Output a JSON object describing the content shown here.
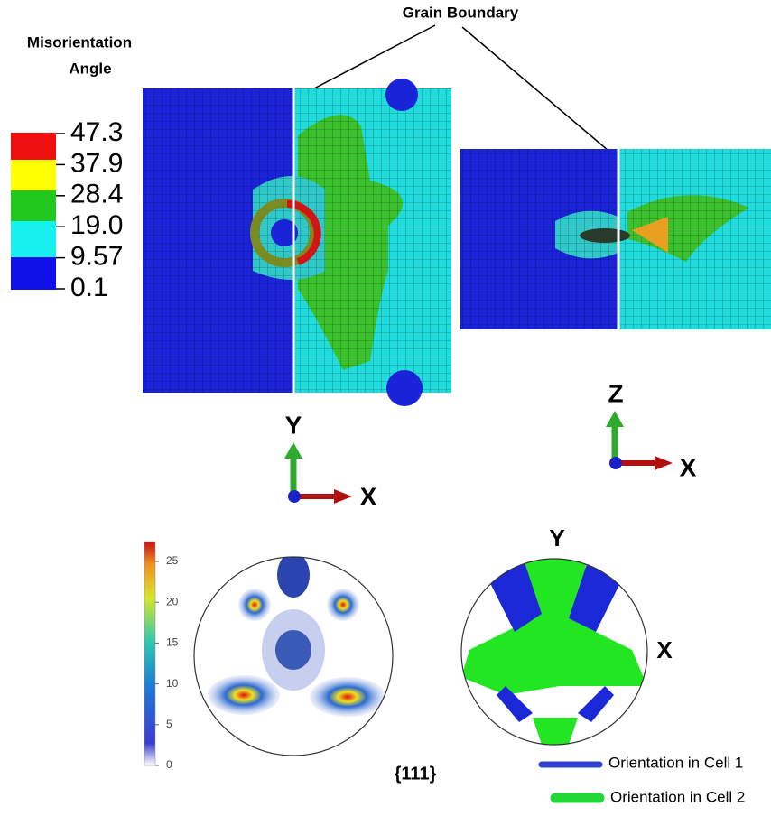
{
  "header": {
    "title": "Grain Boundary"
  },
  "legend": {
    "title_lines": [
      "Misorientation",
      "Angle"
    ],
    "labels": [
      "47.3",
      "37.9",
      "28.4",
      "19.0",
      "9.57",
      "0.1"
    ]
  },
  "views": [
    {
      "axes": [
        "Y",
        "X"
      ]
    },
    {
      "axes": [
        "Z",
        "X"
      ]
    }
  ],
  "pole_figures": {
    "colorbar_ticks": [
      "0",
      "5",
      "10",
      "15",
      "20",
      "25"
    ],
    "plane": "{111}",
    "axis_labels": [
      "Y",
      "X"
    ],
    "legend": [
      "Orientation in Cell 1",
      "Orientation in Cell 2"
    ]
  }
}
